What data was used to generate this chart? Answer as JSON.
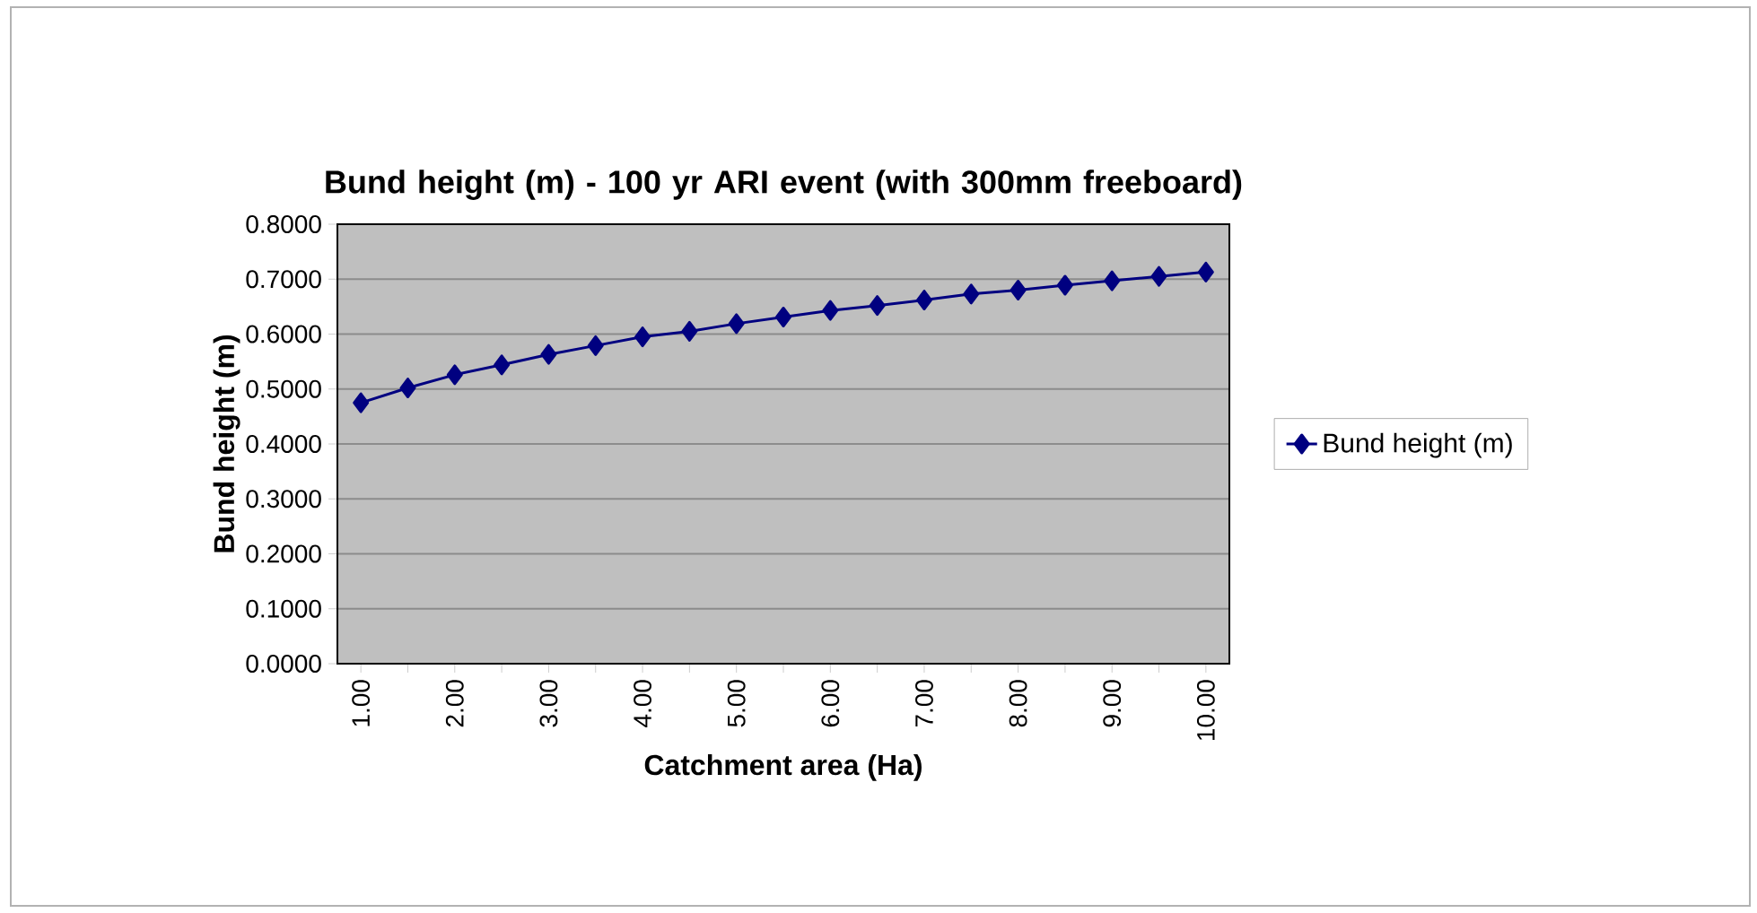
{
  "chart_data": {
    "type": "line",
    "title": "Bund height (m) - 100 yr ARI event (with 300mm freeboard)",
    "xlabel": "Catchment area (Ha)",
    "ylabel": "Bund height (m)",
    "categories": [
      "1.00",
      null,
      "2.00",
      null,
      "3.00",
      null,
      "4.00",
      null,
      "5.00",
      null,
      "6.00",
      null,
      "7.00",
      null,
      "8.00",
      null,
      "9.00",
      null,
      "10.00"
    ],
    "series": [
      {
        "name": "Bund height (m)",
        "color": "#000080",
        "values": [
          0.475,
          0.502,
          0.526,
          0.544,
          0.563,
          0.579,
          0.595,
          0.605,
          0.619,
          0.631,
          0.643,
          0.652,
          0.662,
          0.673,
          0.68,
          0.689,
          0.697,
          0.705,
          0.713
        ]
      }
    ],
    "ylim": [
      0,
      0.8
    ],
    "yticks": [
      {
        "value": 0,
        "label": "0.0000"
      },
      {
        "value": 0.1,
        "label": "0.1000"
      },
      {
        "value": 0.2,
        "label": "0.2000"
      },
      {
        "value": 0.3,
        "label": "0.3000"
      },
      {
        "value": 0.4,
        "label": "0.4000"
      },
      {
        "value": 0.5,
        "label": "0.5000"
      },
      {
        "value": 0.6,
        "label": "0.6000"
      },
      {
        "value": 0.7,
        "label": "0.7000"
      },
      {
        "value": 0.8,
        "label": "0.8000"
      }
    ],
    "grid": "y",
    "legend": "right",
    "marker": "diamond",
    "line_style": "solid"
  }
}
